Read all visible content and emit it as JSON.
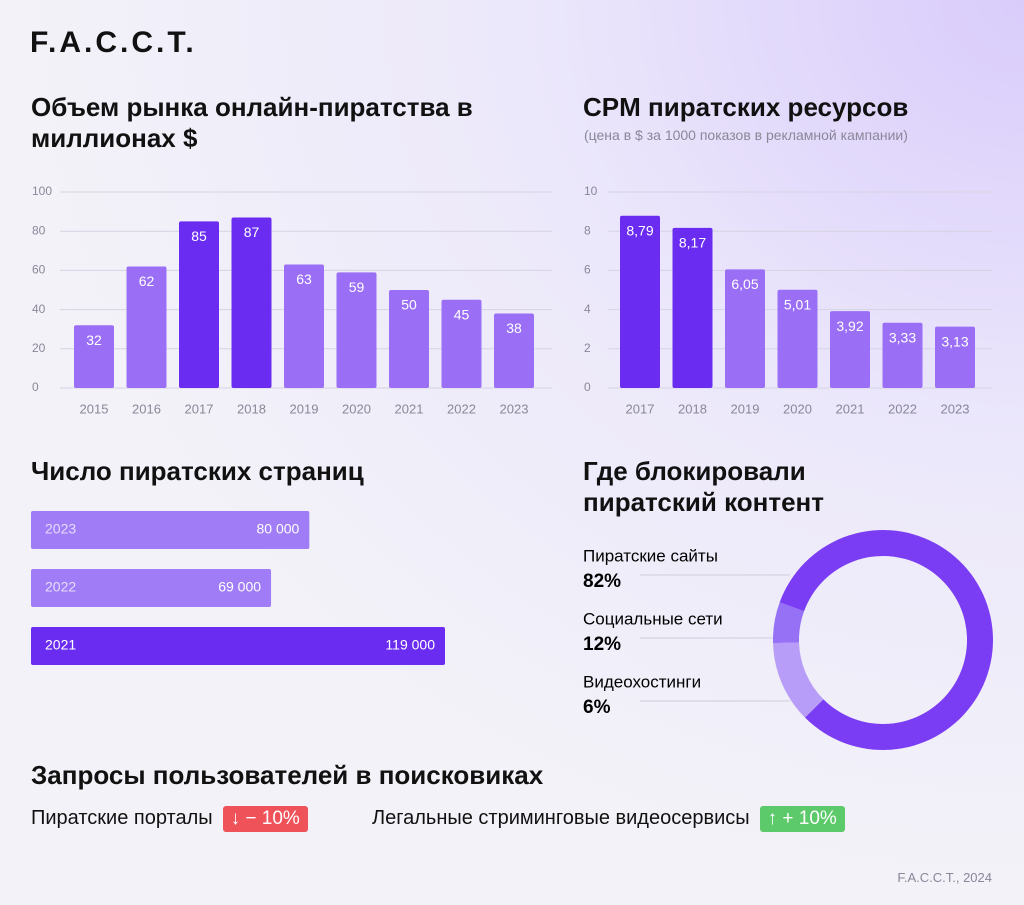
{
  "logo": "F.A.C.C.T.",
  "chart_data": [
    {
      "type": "bar",
      "title": "Объем рынка онлайн-пиратства в миллионах $",
      "categories": [
        "2015",
        "2016",
        "2017",
        "2018",
        "2019",
        "2020",
        "2021",
        "2022",
        "2023"
      ],
      "values": [
        32,
        62,
        85,
        87,
        63,
        59,
        50,
        45,
        38
      ],
      "colors": [
        "#9a6ff6",
        "#9a6ff6",
        "#6a2cf0",
        "#6a2cf0",
        "#9a6ff6",
        "#9a6ff6",
        "#9a6ff6",
        "#9a6ff6",
        "#9a6ff6"
      ],
      "ylim": [
        0,
        100
      ],
      "yticks": [
        0,
        20,
        40,
        60,
        80,
        100
      ],
      "grid": true
    },
    {
      "type": "bar",
      "title": "CPM пиратских ресурсов",
      "subtitle": "(цена в $ за 1000 показов в рекламной кампании)",
      "categories": [
        "2017",
        "2018",
        "2019",
        "2020",
        "2021",
        "2022",
        "2023"
      ],
      "values": [
        8.79,
        8.17,
        6.05,
        5.01,
        3.92,
        3.33,
        3.13
      ],
      "value_labels": [
        "8,79",
        "8,17",
        "6,05",
        "5,01",
        "3,92",
        "3,33",
        "3,13"
      ],
      "colors": [
        "#6a2cf0",
        "#6a2cf0",
        "#9a6ff6",
        "#9a6ff6",
        "#9a6ff6",
        "#9a6ff6",
        "#9a6ff6"
      ],
      "ylim": [
        0,
        10
      ],
      "yticks": [
        0,
        2,
        4,
        6,
        8,
        10
      ],
      "grid": true
    },
    {
      "type": "barh",
      "title": "Число пиратских страниц",
      "categories": [
        "2023",
        "2022",
        "2021"
      ],
      "values": [
        80000,
        69000,
        119000
      ],
      "value_labels": [
        "80 000",
        "69 000",
        "119 000"
      ],
      "colors": [
        "#a07cf6",
        "#a07cf6",
        "#6a2cf0"
      ]
    },
    {
      "type": "donut",
      "title": "Где блокировали пиратский контент",
      "categories": [
        "Пиратские сайты",
        "Социальные сети",
        "Видеохостинги"
      ],
      "values": [
        82,
        12,
        6
      ],
      "value_labels": [
        "82%",
        "12%",
        "6%"
      ],
      "colors": [
        "#7a3df3",
        "#b89df8",
        "#9670f5"
      ]
    }
  ],
  "search": {
    "title": "Запросы пользователей в поисковиках",
    "items": [
      {
        "label": "Пиратские порталы",
        "change": "− 10%"
      },
      {
        "label": "Легальные стриминговые видеосервисы",
        "change": "+ 10%"
      }
    ]
  },
  "footer": "F.A.C.C.T., 2024"
}
